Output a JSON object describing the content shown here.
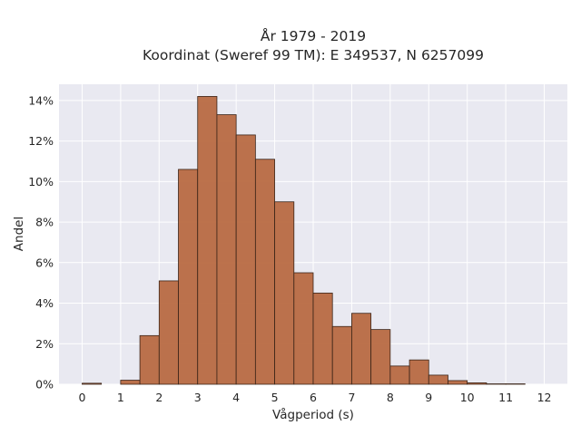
{
  "chart_data": {
    "type": "bar",
    "title_line1": "År 1979 - 2019",
    "title_line2": "Koordinat (Sweref 99 TM): E 349537, N 6257099",
    "xlabel": "Vågperiod (s)",
    "ylabel": "Andel",
    "xlim": [
      -0.6,
      12.6
    ],
    "ylim": [
      0,
      14.8
    ],
    "x_ticks": [
      "0",
      "1",
      "2",
      "3",
      "4",
      "5",
      "6",
      "7",
      "8",
      "9",
      "10",
      "11",
      "12"
    ],
    "y_ticks": [
      "0%",
      "2%",
      "4%",
      "6%",
      "8%",
      "10%",
      "12%",
      "14%"
    ],
    "grid": true,
    "bar_color": "#b86a42",
    "bar_edge_color": "#3a2418",
    "background_color": "#e9e9f1",
    "bin_width": 0.5,
    "bins": [
      {
        "x": 0.0,
        "value": 0.05
      },
      {
        "x": 0.5,
        "value": 0.0
      },
      {
        "x": 1.0,
        "value": 0.2
      },
      {
        "x": 1.5,
        "value": 2.4
      },
      {
        "x": 2.0,
        "value": 5.1
      },
      {
        "x": 2.5,
        "value": 10.6
      },
      {
        "x": 3.0,
        "value": 14.2
      },
      {
        "x": 3.5,
        "value": 13.3
      },
      {
        "x": 4.0,
        "value": 12.3
      },
      {
        "x": 4.5,
        "value": 11.1
      },
      {
        "x": 5.0,
        "value": 9.0
      },
      {
        "x": 5.5,
        "value": 5.5
      },
      {
        "x": 6.0,
        "value": 4.5
      },
      {
        "x": 6.5,
        "value": 2.85
      },
      {
        "x": 7.0,
        "value": 3.5
      },
      {
        "x": 7.5,
        "value": 2.7
      },
      {
        "x": 8.0,
        "value": 0.9
      },
      {
        "x": 8.5,
        "value": 1.2
      },
      {
        "x": 9.0,
        "value": 0.45
      },
      {
        "x": 9.5,
        "value": 0.18
      },
      {
        "x": 10.0,
        "value": 0.07
      },
      {
        "x": 10.5,
        "value": 0.02
      },
      {
        "x": 11.0,
        "value": 0.02
      }
    ]
  }
}
